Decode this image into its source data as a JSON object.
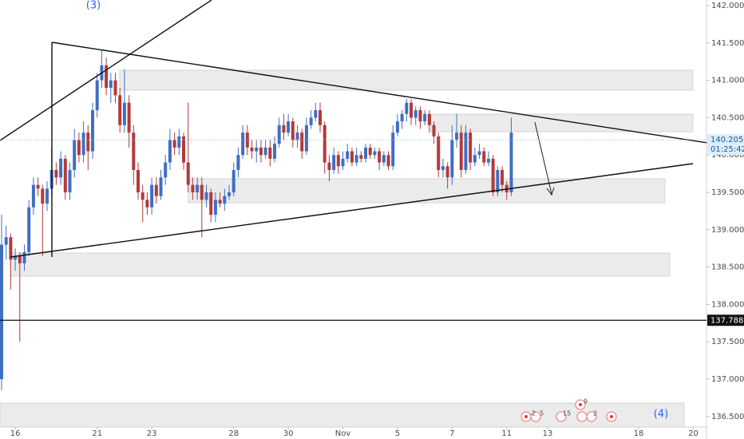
{
  "chart_data": {
    "type": "candlestick",
    "annotations": [
      "(3)",
      "(4)"
    ],
    "up_color": "#3f6fc2",
    "down_color": "#b23a3c",
    "ylim": [
      136.359,
      142.075
    ],
    "yticks": [
      {
        "value": 136.5,
        "label": "136.500"
      },
      {
        "value": 137,
        "label": "137.000"
      },
      {
        "value": 137.5,
        "label": "137.500"
      },
      {
        "value": 138,
        "label": "138.000"
      },
      {
        "value": 138.5,
        "label": "138.500"
      },
      {
        "value": 139,
        "label": "139.000"
      },
      {
        "value": 139.5,
        "label": "139.500"
      },
      {
        "value": 140,
        "label": "140.000"
      },
      {
        "value": 140.5,
        "label": "140.500"
      },
      {
        "value": 141,
        "label": "141.000"
      },
      {
        "value": 141.5,
        "label": "141.500"
      },
      {
        "value": 142,
        "label": "142.000"
      }
    ],
    "xlim": [
      -0.35,
      154.9
    ],
    "xticks": [
      {
        "value": 3,
        "label": "16"
      },
      {
        "value": 21,
        "label": "21"
      },
      {
        "value": 33,
        "label": "23"
      },
      {
        "value": 51,
        "label": "28"
      },
      {
        "value": 63,
        "label": "30"
      },
      {
        "value": 75,
        "label": "Nov"
      },
      {
        "value": 87,
        "label": "5"
      },
      {
        "value": 99,
        "label": "7"
      },
      {
        "value": 111,
        "label": "11"
      },
      {
        "value": 120,
        "label": "13"
      },
      {
        "value": 140,
        "label": "18"
      },
      {
        "value": 152,
        "label": "20"
      }
    ],
    "current_price": 140.205,
    "countdown": "01:25:42",
    "horizontal_level": 137.788,
    "events": [
      "2",
      "5",
      "15",
      "9",
      "2"
    ],
    "ohlc": [
      [
        137.0,
        139.2,
        136.85,
        138.8
      ],
      [
        138.8,
        139.05,
        138.6,
        138.9
      ],
      [
        138.9,
        138.95,
        138.2,
        138.6
      ],
      [
        138.6,
        138.75,
        138.45,
        138.65
      ],
      [
        138.65,
        138.7,
        137.5,
        138.55
      ],
      [
        138.55,
        138.8,
        138.45,
        138.7
      ],
      [
        138.7,
        139.4,
        138.65,
        139.3
      ],
      [
        139.3,
        139.7,
        139.2,
        139.6
      ],
      [
        139.6,
        139.7,
        139.45,
        139.55
      ],
      [
        139.55,
        139.6,
        138.65,
        139.35
      ],
      [
        139.35,
        139.65,
        139.25,
        139.55
      ],
      [
        139.55,
        140.1,
        139.45,
        139.8
      ],
      [
        139.8,
        139.9,
        139.6,
        139.7
      ],
      [
        139.7,
        140.05,
        139.6,
        139.95
      ],
      [
        139.95,
        140.0,
        139.4,
        139.5
      ],
      [
        139.5,
        139.9,
        139.4,
        139.8
      ],
      [
        139.8,
        140.35,
        139.7,
        140.2
      ],
      [
        140.2,
        140.3,
        139.9,
        140.0
      ],
      [
        140.0,
        140.45,
        139.9,
        140.3
      ],
      [
        140.3,
        140.4,
        139.8,
        140.05
      ],
      [
        140.05,
        140.7,
        139.95,
        140.6
      ],
      [
        140.6,
        141.1,
        140.5,
        141.0
      ],
      [
        141.0,
        141.4,
        140.9,
        141.2
      ],
      [
        141.2,
        141.3,
        140.8,
        140.9
      ],
      [
        140.9,
        141.1,
        140.7,
        141.0
      ],
      [
        141.0,
        141.1,
        140.7,
        140.8
      ],
      [
        140.8,
        140.9,
        140.3,
        140.4
      ],
      [
        140.4,
        141.15,
        140.3,
        140.7
      ],
      [
        140.7,
        140.8,
        140.1,
        140.3
      ],
      [
        140.3,
        140.4,
        139.6,
        139.8
      ],
      [
        139.8,
        139.9,
        139.4,
        139.5
      ],
      [
        139.5,
        139.6,
        139.1,
        139.4
      ],
      [
        139.4,
        139.5,
        139.2,
        139.3
      ],
      [
        139.3,
        139.7,
        139.2,
        139.6
      ],
      [
        139.6,
        139.7,
        139.35,
        139.45
      ],
      [
        139.45,
        139.8,
        139.4,
        139.7
      ],
      [
        139.7,
        140.0,
        139.6,
        139.9
      ],
      [
        139.9,
        140.35,
        139.8,
        140.2
      ],
      [
        140.2,
        140.3,
        140.0,
        140.1
      ],
      [
        140.1,
        140.35,
        140.0,
        140.25
      ],
      [
        140.25,
        140.3,
        139.8,
        139.9
      ],
      [
        139.9,
        140.7,
        139.5,
        139.6
      ],
      [
        139.6,
        139.7,
        139.4,
        139.5
      ],
      [
        139.5,
        139.7,
        139.4,
        139.6
      ],
      [
        139.6,
        139.7,
        138.9,
        139.4
      ],
      [
        139.4,
        139.6,
        139.3,
        139.5
      ],
      [
        139.5,
        139.55,
        139.1,
        139.2
      ],
      [
        139.2,
        139.5,
        139.1,
        139.4
      ],
      [
        139.4,
        139.5,
        139.3,
        139.35
      ],
      [
        139.35,
        139.55,
        139.25,
        139.45
      ],
      [
        139.45,
        139.6,
        139.4,
        139.5
      ],
      [
        139.5,
        139.9,
        139.45,
        139.8
      ],
      [
        139.8,
        140.1,
        139.7,
        140.0
      ],
      [
        140.0,
        140.4,
        139.95,
        140.3
      ],
      [
        140.3,
        140.4,
        140.0,
        140.1
      ],
      [
        140.1,
        140.2,
        139.95,
        140.05
      ],
      [
        140.05,
        140.2,
        139.9,
        140.1
      ],
      [
        140.1,
        140.2,
        139.9,
        140.0
      ],
      [
        140.0,
        140.2,
        139.95,
        140.1
      ],
      [
        140.1,
        140.2,
        139.85,
        139.95
      ],
      [
        139.95,
        140.25,
        139.9,
        140.15
      ],
      [
        140.15,
        140.5,
        140.1,
        140.4
      ],
      [
        140.4,
        140.55,
        140.2,
        140.3
      ],
      [
        140.3,
        140.55,
        140.25,
        140.45
      ],
      [
        140.45,
        140.5,
        140.1,
        140.2
      ],
      [
        140.2,
        140.4,
        140.1,
        140.3
      ],
      [
        140.3,
        140.35,
        139.95,
        140.05
      ],
      [
        140.05,
        140.5,
        140.0,
        140.4
      ],
      [
        140.4,
        140.6,
        140.35,
        140.5
      ],
      [
        140.5,
        140.7,
        140.45,
        140.6
      ],
      [
        140.6,
        140.7,
        140.3,
        140.4
      ],
      [
        140.4,
        140.45,
        139.75,
        139.9
      ],
      [
        139.9,
        140.0,
        139.65,
        139.8
      ],
      [
        139.8,
        140.1,
        139.75,
        140.0
      ],
      [
        140.0,
        140.05,
        139.75,
        139.85
      ],
      [
        139.85,
        140.05,
        139.8,
        139.95
      ],
      [
        139.95,
        140.15,
        139.9,
        140.05
      ],
      [
        140.05,
        140.1,
        139.85,
        139.9
      ],
      [
        139.9,
        140.1,
        139.85,
        140.0
      ],
      [
        140.0,
        140.05,
        139.9,
        139.95
      ],
      [
        139.95,
        140.15,
        139.9,
        140.1
      ],
      [
        140.1,
        140.15,
        139.95,
        140.0
      ],
      [
        140.0,
        140.1,
        139.95,
        140.05
      ],
      [
        140.05,
        140.1,
        139.8,
        139.9
      ],
      [
        139.9,
        140.05,
        139.85,
        140.0
      ],
      [
        140.0,
        140.05,
        139.8,
        139.85
      ],
      [
        139.85,
        140.4,
        139.8,
        140.3
      ],
      [
        140.3,
        140.55,
        140.25,
        140.45
      ],
      [
        140.45,
        140.6,
        140.35,
        140.55
      ],
      [
        140.55,
        140.75,
        140.45,
        140.7
      ],
      [
        140.7,
        140.75,
        140.4,
        140.5
      ],
      [
        140.5,
        140.65,
        140.4,
        140.6
      ],
      [
        140.6,
        140.65,
        140.35,
        140.45
      ],
      [
        140.45,
        140.6,
        140.4,
        140.55
      ],
      [
        140.55,
        140.6,
        140.3,
        140.4
      ],
      [
        140.4,
        140.45,
        140.15,
        140.25
      ],
      [
        140.25,
        140.3,
        139.7,
        139.8
      ],
      [
        139.8,
        139.95,
        139.7,
        139.85
      ],
      [
        139.85,
        139.9,
        139.55,
        139.7
      ],
      [
        139.7,
        140.4,
        139.6,
        140.2
      ],
      [
        140.2,
        140.55,
        140.1,
        140.3
      ],
      [
        140.3,
        140.4,
        139.7,
        139.8
      ],
      [
        139.8,
        140.4,
        139.75,
        140.3
      ],
      [
        140.3,
        140.35,
        139.8,
        139.9
      ],
      [
        139.9,
        140.1,
        139.85,
        140.0
      ],
      [
        140.0,
        140.15,
        139.95,
        140.05
      ],
      [
        140.05,
        140.1,
        139.85,
        139.9
      ],
      [
        139.9,
        140.05,
        139.85,
        139.95
      ],
      [
        139.95,
        140.0,
        139.45,
        139.5
      ],
      [
        139.5,
        139.85,
        139.45,
        139.8
      ],
      [
        139.8,
        139.85,
        139.5,
        139.6
      ],
      [
        139.6,
        139.65,
        139.4,
        139.5
      ],
      [
        139.5,
        140.5,
        139.45,
        140.3
      ]
    ]
  }
}
